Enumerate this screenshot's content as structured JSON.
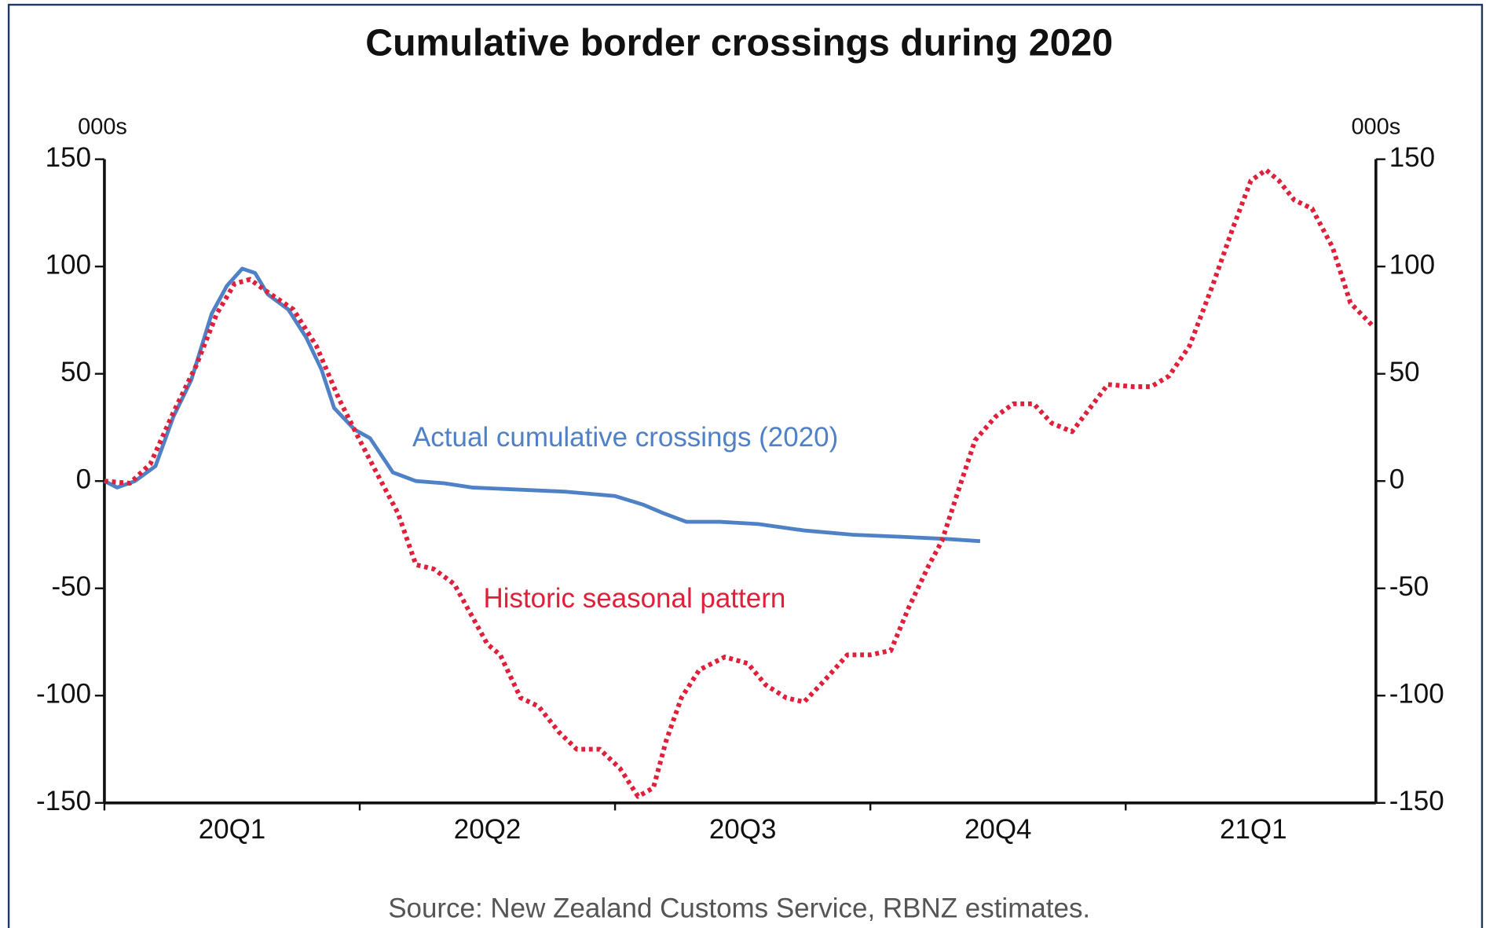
{
  "chart_data": {
    "type": "line",
    "title": "Cumulative border crossings during 2020",
    "y_label": "000s",
    "y2_label": "000s",
    "source": "Source: New Zealand Customs Service, RBNZ estimates.",
    "xlim": [
      0,
      4.98
    ],
    "xticks": [
      {
        "value": 0.5,
        "label": "20Q1"
      },
      {
        "value": 1.5,
        "label": "20Q2"
      },
      {
        "value": 2.5,
        "label": "20Q3"
      },
      {
        "value": 3.5,
        "label": "20Q4"
      },
      {
        "value": 4.5,
        "label": "21Q1"
      }
    ],
    "xtick_marks": [
      0,
      1,
      2,
      3,
      4
    ],
    "ylim": [
      -150,
      150
    ],
    "yticks": [
      -150,
      -100,
      -50,
      0,
      50,
      100,
      150
    ],
    "y2lim": [
      -150,
      150
    ],
    "y2ticks": [
      -150,
      -100,
      -50,
      0,
      50,
      100,
      150
    ],
    "series": [
      {
        "name": "Actual cumulative crossings (2020)",
        "color": "#4f81c7",
        "style": "solid",
        "x": [
          0,
          0.05,
          0.12,
          0.2,
          0.27,
          0.34,
          0.42,
          0.48,
          0.54,
          0.59,
          0.64,
          0.72,
          0.79,
          0.85,
          0.9,
          0.98,
          1.04,
          1.13,
          1.22,
          1.33,
          1.44,
          1.63,
          1.81,
          2.0,
          2.11,
          2.19,
          2.28,
          2.41,
          2.56,
          2.74,
          2.93,
          3.12,
          3.3,
          3.43
        ],
        "values": [
          0,
          -3,
          0,
          7,
          30,
          47,
          78,
          91,
          99,
          97,
          87,
          80,
          67,
          52,
          34,
          24,
          20,
          4,
          0,
          -1,
          -3,
          -4,
          -5,
          -7,
          -11,
          -15,
          -19,
          -19,
          -20,
          -23,
          -25,
          -26,
          -27,
          -28
        ]
      },
      {
        "name": "Historic seasonal pattern",
        "color": "#e0203a",
        "style": "dotted",
        "x": [
          0,
          0.1,
          0.18,
          0.27,
          0.36,
          0.44,
          0.51,
          0.57,
          0.64,
          0.74,
          0.83,
          0.92,
          1.0,
          1.07,
          1.15,
          1.22,
          1.29,
          1.37,
          1.44,
          1.5,
          1.55,
          1.63,
          1.7,
          1.78,
          1.85,
          1.94,
          2.02,
          2.09,
          2.15,
          2.2,
          2.26,
          2.33,
          2.43,
          2.52,
          2.59,
          2.67,
          2.74,
          2.82,
          2.91,
          3.0,
          3.08,
          3.15,
          3.23,
          3.28,
          3.34,
          3.41,
          3.49,
          3.56,
          3.64,
          3.71,
          3.79,
          3.86,
          3.93,
          4.03,
          4.1,
          4.17,
          4.25,
          4.34,
          4.42,
          4.49,
          4.55,
          4.6,
          4.66,
          4.73,
          4.81,
          4.88,
          4.97
        ],
        "values": [
          0,
          -1,
          8,
          32,
          54,
          78,
          92,
          94,
          88,
          80,
          63,
          38,
          19,
          3,
          -15,
          -39,
          -41,
          -48,
          -63,
          -76,
          -81,
          -101,
          -105,
          -117,
          -125,
          -125,
          -134,
          -147,
          -143,
          -121,
          -101,
          -88,
          -82,
          -85,
          -95,
          -101,
          -103,
          -93,
          -81,
          -81,
          -79,
          -59,
          -39,
          -28,
          -6,
          19,
          30,
          36,
          36,
          27,
          23,
          34,
          45,
          44,
          44,
          49,
          63,
          91,
          118,
          140,
          145,
          140,
          131,
          127,
          109,
          83,
          72
        ]
      }
    ]
  }
}
